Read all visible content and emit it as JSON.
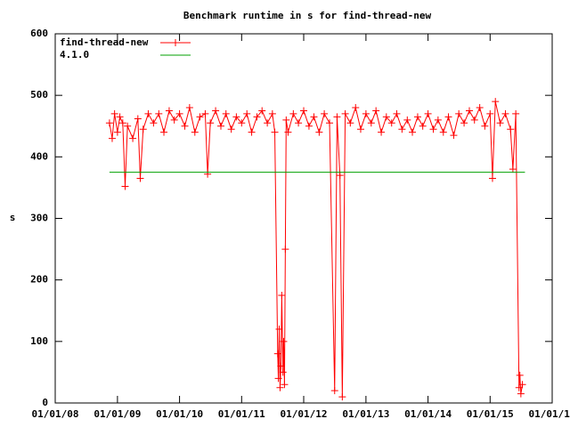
{
  "chart_data": {
    "type": "line",
    "title": "Benchmark runtime in s for find-thread-new",
    "ylabel": "s",
    "xlim": [
      "2008-01-01",
      "2016-01-01"
    ],
    "xticks": [
      {
        "value": "2008-01-01",
        "label": "01/01/08"
      },
      {
        "value": "2009-01-01",
        "label": "01/01/09"
      },
      {
        "value": "2010-01-01",
        "label": "01/01/10"
      },
      {
        "value": "2011-01-01",
        "label": "01/01/11"
      },
      {
        "value": "2012-01-01",
        "label": "01/01/12"
      },
      {
        "value": "2013-01-01",
        "label": "01/01/13"
      },
      {
        "value": "2014-01-01",
        "label": "01/01/14"
      },
      {
        "value": "2015-01-01",
        "label": "01/01/15"
      },
      {
        "value": "2016-01-01",
        "label": "01/01/16"
      }
    ],
    "ylim": [
      0,
      600
    ],
    "yticks": [
      0,
      100,
      200,
      300,
      400,
      500,
      600
    ],
    "legend": "top-left",
    "series": [
      {
        "name": "find-thread-new",
        "color": "#ff0000",
        "marker": "plus",
        "x": [
          "2008-11-15",
          "2008-12-01",
          "2008-12-15",
          "2009-01-01",
          "2009-01-15",
          "2009-02-01",
          "2009-02-15",
          "2009-03-01",
          "2009-04-01",
          "2009-05-01",
          "2009-05-15",
          "2009-06-01",
          "2009-07-01",
          "2009-08-01",
          "2009-09-01",
          "2009-10-01",
          "2009-11-01",
          "2009-12-01",
          "2010-01-01",
          "2010-02-01",
          "2010-03-01",
          "2010-04-01",
          "2010-05-01",
          "2010-06-01",
          "2010-06-15",
          "2010-07-01",
          "2010-08-01",
          "2010-09-01",
          "2010-10-01",
          "2010-11-01",
          "2010-12-01",
          "2011-01-01",
          "2011-02-01",
          "2011-03-01",
          "2011-04-01",
          "2011-05-01",
          "2011-06-01",
          "2011-07-01",
          "2011-07-15",
          "2011-08-01",
          "2011-08-05",
          "2011-08-10",
          "2011-08-15",
          "2011-08-20",
          "2011-08-25",
          "2011-09-01",
          "2011-09-05",
          "2011-09-10",
          "2011-09-15",
          "2011-09-20",
          "2011-10-01",
          "2011-11-01",
          "2011-12-01",
          "2012-01-01",
          "2012-02-01",
          "2012-03-01",
          "2012-04-01",
          "2012-05-01",
          "2012-06-01",
          "2012-07-01",
          "2012-07-15",
          "2012-08-01",
          "2012-08-15",
          "2012-09-01",
          "2012-10-01",
          "2012-11-01",
          "2012-12-01",
          "2013-01-01",
          "2013-02-01",
          "2013-03-01",
          "2013-04-01",
          "2013-05-01",
          "2013-06-01",
          "2013-07-01",
          "2013-08-01",
          "2013-09-01",
          "2013-10-01",
          "2013-11-01",
          "2013-12-01",
          "2014-01-01",
          "2014-02-01",
          "2014-03-01",
          "2014-04-01",
          "2014-05-01",
          "2014-06-01",
          "2014-07-01",
          "2014-08-01",
          "2014-09-01",
          "2014-10-01",
          "2014-11-01",
          "2014-12-01",
          "2015-01-01",
          "2015-01-15",
          "2015-02-01",
          "2015-03-01",
          "2015-04-01",
          "2015-05-01",
          "2015-05-15",
          "2015-06-01",
          "2015-06-20",
          "2015-06-25",
          "2015-07-01",
          "2015-07-10"
        ],
        "values": [
          455,
          430,
          470,
          440,
          465,
          455,
          352,
          450,
          430,
          462,
          365,
          445,
          470,
          455,
          470,
          440,
          475,
          460,
          470,
          450,
          480,
          440,
          465,
          470,
          372,
          455,
          475,
          450,
          470,
          445,
          465,
          455,
          470,
          440,
          465,
          475,
          455,
          470,
          440,
          80,
          40,
          120,
          25,
          60,
          175,
          50,
          100,
          30,
          250,
          460,
          440,
          470,
          455,
          475,
          450,
          465,
          440,
          470,
          455,
          20,
          465,
          370,
          10,
          470,
          455,
          480,
          445,
          470,
          455,
          475,
          440,
          465,
          455,
          470,
          445,
          460,
          440,
          465,
          450,
          470,
          445,
          460,
          440,
          465,
          435,
          470,
          455,
          475,
          460,
          480,
          450,
          470,
          365,
          490,
          455,
          470,
          445,
          380,
          470,
          25,
          45,
          15,
          30
        ]
      },
      {
        "name": "4.1.0",
        "color": "#00a000",
        "marker": "none",
        "x": [
          "2008-11-15",
          "2015-07-25"
        ],
        "values": [
          375,
          375
        ]
      }
    ]
  }
}
